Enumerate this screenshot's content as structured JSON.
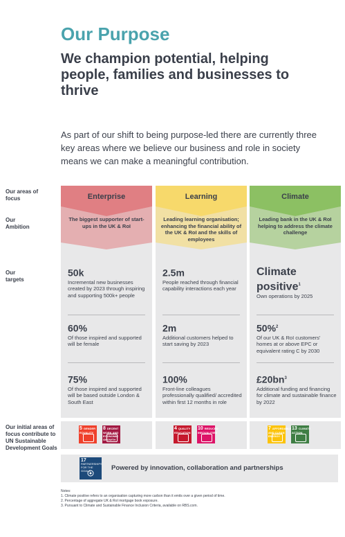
{
  "header": {
    "title": "Our Purpose",
    "subtitle": "We champion potential, helping people, families and businesses to thrive",
    "intro": "As part of our shift to being purpose-led there are currently three key areas where we believe our business and role in society means we can make a meaningful contribution."
  },
  "row_labels": {
    "focus": "Our areas of focus",
    "ambition": "Our Ambition",
    "targets": "Our targets",
    "sdg": "Our initial areas of focus contribute to UN Sustainable Development Goals"
  },
  "columns": [
    {
      "name": "Enterprise",
      "color": "#e07f83",
      "ambition": "The biggest supporter of start-ups in the UK & RoI",
      "targets": [
        {
          "value": "50k",
          "sup": "",
          "desc": "Incremental new businesses created by 2023 through inspiring and supporting 500k+ people"
        },
        {
          "value": "60%",
          "sup": "",
          "desc": "Of those inspired and supported will be female"
        },
        {
          "value": "75%",
          "sup": "",
          "desc": "Of those inspired and supported will be based outside London & South East"
        }
      ],
      "sdgs": [
        {
          "num": "5",
          "label": "GENDER EQUALITY",
          "color": "#ef402b"
        },
        {
          "num": "8",
          "label": "DECENT WORK AND ECONOMIC GROWTH",
          "color": "#a21942"
        }
      ]
    },
    {
      "name": "Learning",
      "color": "#f7d96b",
      "ambition": "Leading learning organisation; enhancing the financial ability of the UK & RoI and the skills of employees",
      "targets": [
        {
          "value": "2.5m",
          "sup": "",
          "desc": "People reached through financial capability interactions each year"
        },
        {
          "value": "2m",
          "sup": "",
          "desc": "Additional customers helped to start saving by 2023"
        },
        {
          "value": "100%",
          "sup": "",
          "desc": "Front-line colleagues professionally qualified/ accredited within first 12 months in role"
        }
      ],
      "sdgs": [
        {
          "num": "4",
          "label": "QUALITY EDUCATION",
          "color": "#c5192d"
        },
        {
          "num": "10",
          "label": "REDUCED INEQUALITIES",
          "color": "#dd1367"
        }
      ]
    },
    {
      "name": "Climate",
      "color": "#8cc063",
      "ambition": "Leading bank in the UK & RoI helping to address the climate challenge",
      "targets": [
        {
          "value": "Climate positive",
          "sup": "1",
          "desc": "Own operations by 2025"
        },
        {
          "value": "50%",
          "sup": "2",
          "desc": "Of our UK & RoI customers' homes at or above EPC or equivalent rating C by 2030"
        },
        {
          "value": "£20bn",
          "sup": "3",
          "desc": "Additional funding and financing for climate and sustainable finance by 2022"
        }
      ],
      "sdgs": [
        {
          "num": "7",
          "label": "AFFORDABLE AND CLEAN ENERGY",
          "color": "#fcc30b"
        },
        {
          "num": "13",
          "label": "CLIMATE ACTION",
          "color": "#3f7e44"
        }
      ]
    }
  ],
  "partnership": {
    "sdg_num": "17",
    "sdg_label": "PARTNERSHIPS FOR THE GOALS",
    "sdg_color": "#1d4a7a",
    "text": "Powered by innovation, collaboration and partnerships"
  },
  "notes": {
    "heading": "Notes:",
    "items": [
      "1.  Climate positive refers to an organisation capturing more carbon than it emits over a given period of time.",
      "2.  Percentage of aggregate UK & RoI mortgage book exposure.",
      "3.  Pursuant to Climate and Sustainable Finance Inclusion Criteria, available on RBS.com."
    ]
  }
}
